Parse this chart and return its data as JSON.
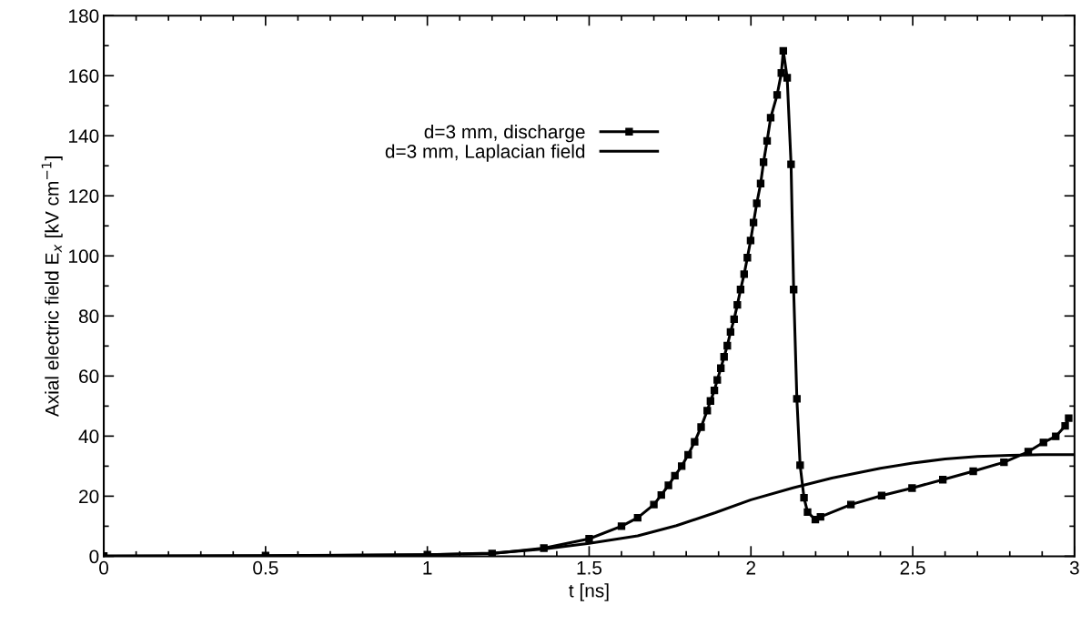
{
  "chart_data": {
    "type": "line",
    "xlabel": "t [ns]",
    "ylabel": "Axial electric field E$_{x}$ [kV cm$^{−1}$]",
    "xlim": [
      0,
      3
    ],
    "ylim": [
      0,
      180
    ],
    "xticks": [
      0,
      0.5,
      1,
      1.5,
      2,
      2.5,
      3
    ],
    "yticks": [
      0,
      20,
      40,
      60,
      80,
      100,
      120,
      140,
      160,
      180
    ],
    "grid": false,
    "legend": "top",
    "line_style": "solid",
    "series": [
      {
        "name": "d=3 mm, discharge",
        "color": "#000000",
        "marker": "square",
        "x": [
          0,
          0.5,
          1.0,
          1.2,
          1.36,
          1.5,
          1.6,
          1.65,
          1.7,
          1.723,
          1.745,
          1.765,
          1.786,
          1.806,
          1.826,
          1.846,
          1.865,
          1.875,
          1.887,
          1.896,
          1.907,
          1.917,
          1.927,
          1.937,
          1.948,
          1.958,
          1.968,
          1.979,
          1.989,
          1.999,
          2.008,
          2.018,
          2.03,
          2.039,
          2.05,
          2.061,
          2.081,
          2.094,
          2.1,
          2.112,
          2.124,
          2.132,
          2.142,
          2.152,
          2.164,
          2.175,
          2.199,
          2.215,
          2.309,
          2.404,
          2.498,
          2.593,
          2.687,
          2.782,
          2.857,
          2.904,
          2.942,
          2.971,
          2.982
        ],
        "values": [
          0.1,
          0.2,
          0.5,
          0.9,
          2.7,
          5.8,
          10,
          12.8,
          17.2,
          20.4,
          23.6,
          26.8,
          30.0,
          33.8,
          38.1,
          43.0,
          48.5,
          51.7,
          55.2,
          58.7,
          62.6,
          66.4,
          70.1,
          74.7,
          78.9,
          83.7,
          88.8,
          93.9,
          99.4,
          105.1,
          111.1,
          117.5,
          124.1,
          131.2,
          138.3,
          146,
          153.6,
          160.9,
          168.3,
          159.3,
          130.5,
          88.8,
          52.4,
          30.3,
          19.5,
          14.7,
          12.2,
          13.1,
          17.2,
          20.2,
          22.7,
          25.5,
          28.3,
          31.3,
          34.8,
          37.9,
          39.9,
          43.4,
          46.0
        ]
      },
      {
        "name": "d=3 mm, Laplacian field",
        "color": "#000000",
        "marker": "none",
        "x": [
          0,
          0.5,
          1.0,
          1.2,
          1.36,
          1.5,
          1.65,
          1.77,
          1.89,
          2.0,
          2.13,
          2.25,
          2.4,
          2.5,
          2.6,
          2.7,
          2.8,
          2.9,
          3.0
        ],
        "values": [
          0,
          0.1,
          0.5,
          1.0,
          2.4,
          4.3,
          6.8,
          10.2,
          14.5,
          18.8,
          22.8,
          26.0,
          29.3,
          31.0,
          32.4,
          33.2,
          33.6,
          33.8,
          33.8
        ]
      }
    ]
  }
}
